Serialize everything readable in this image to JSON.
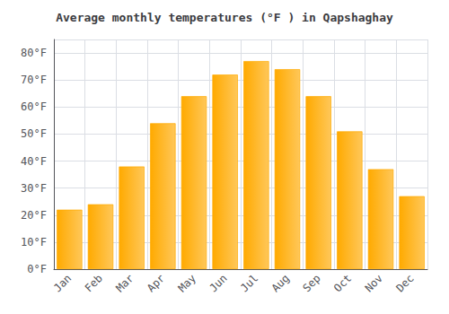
{
  "chart_data": {
    "type": "bar",
    "title": "Average monthly temperatures (°F ) in Qapshaghay",
    "categories": [
      "Jan",
      "Feb",
      "Mar",
      "Apr",
      "May",
      "Jun",
      "Jul",
      "Aug",
      "Sep",
      "Oct",
      "Nov",
      "Dec"
    ],
    "values": [
      22,
      24,
      38,
      54,
      64,
      72,
      77,
      74,
      64,
      51,
      37,
      27
    ],
    "color": "#FFAA00",
    "ylim": [
      0,
      85
    ],
    "yticks": [
      {
        "value": 0,
        "label": "0°F"
      },
      {
        "value": 10,
        "label": "10°F"
      },
      {
        "value": 20,
        "label": "20°F"
      },
      {
        "value": 30,
        "label": "30°F"
      },
      {
        "value": 40,
        "label": "40°F"
      },
      {
        "value": 50,
        "label": "50°F"
      },
      {
        "value": 60,
        "label": "60°F"
      },
      {
        "value": 70,
        "label": "70°F"
      },
      {
        "value": 80,
        "label": "80°F"
      }
    ],
    "grid": true
  }
}
